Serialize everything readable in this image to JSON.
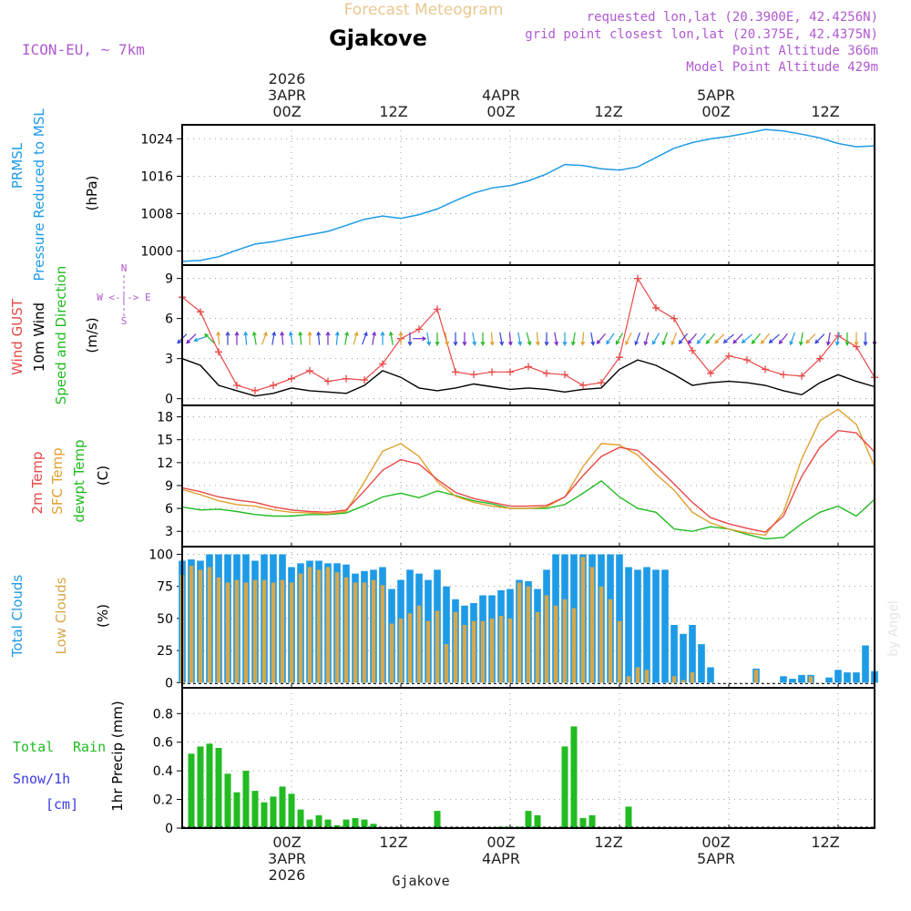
{
  "header": {
    "product_title": "Forecast Meteogram",
    "location": "Gjakove",
    "model": "ICON-EU, ~ 7km",
    "requested": "requested lon,lat (20.3900E, 42.4256N)",
    "grid_point": "grid point closest lon,lat (20.375E, 42.4375N)",
    "point_altitude": "Point Altitude 366m",
    "model_altitude": "Model Point Altitude 429m",
    "footer_location": "Gjakove",
    "watermark": "by Angel"
  },
  "time_axis": {
    "top_year": "2026",
    "ticks": [
      {
        "hour": 12,
        "label": "00Z",
        "date": "3APR",
        "year": "2026"
      },
      {
        "hour": 24,
        "label": "12Z"
      },
      {
        "hour": 36,
        "label": "00Z",
        "date": "4APR"
      },
      {
        "hour": 48,
        "label": "12Z"
      },
      {
        "hour": 60,
        "label": "00Z",
        "date": "5APR"
      },
      {
        "hour": 72,
        "label": "12Z"
      }
    ],
    "hour_range": [
      0,
      76
    ]
  },
  "legend": {
    "p1": {
      "a": "PRMSL",
      "b": "Pressure Reduced to MSL",
      "unit": "(hPa)"
    },
    "p2": {
      "a": "Wind GUST",
      "b": "10m Wind",
      "c": "Speed and Direction",
      "unit": "(m/s)",
      "compass_n": "N",
      "compass_s": "S",
      "compass_we": "W <-|-> E"
    },
    "p3": {
      "a": "2m Temp",
      "b": "SFC Temp",
      "c": "dewpt Temp",
      "unit": "(C)"
    },
    "p4": {
      "a": "Total Clouds",
      "b": "Low Clouds",
      "unit": "(%)"
    },
    "p5": {
      "a": "Total",
      "a2": "Rain",
      "b": "Snow/1h",
      "c": "[cm]",
      "ylabel": "1hr Precip (mm)"
    }
  },
  "colors": {
    "pressure": "#1e9be6",
    "gust": "#e84848",
    "wind10m": "#000000",
    "temp2m": "#e84848",
    "sfc": "#e0a030",
    "dewpt": "#22bb22",
    "total_clouds": "#1e9be6",
    "low_clouds": "#d6a74a",
    "rain": "#22bb22",
    "snow": "#3b3be0",
    "purple": "#b05ad0",
    "title_faint": "#e8c890"
  },
  "chart_data": [
    {
      "type": "line",
      "title": "PRMSL Pressure Reduced to MSL",
      "ylabel": "(hPa)",
      "ylim": [
        997,
        1027
      ],
      "yticks": [
        1000,
        1008,
        1016,
        1024
      ],
      "x": [
        0,
        2,
        4,
        6,
        8,
        10,
        12,
        14,
        16,
        18,
        20,
        22,
        24,
        26,
        28,
        30,
        32,
        34,
        36,
        38,
        40,
        42,
        44,
        46,
        48,
        50,
        52,
        54,
        56,
        58,
        60,
        62,
        64,
        66,
        68,
        70,
        72,
        74,
        76
      ],
      "series": [
        {
          "name": "PRMSL",
          "values": [
            997.8,
            998.0,
            998.8,
            1000.2,
            1001.5,
            1002.0,
            1002.8,
            1003.5,
            1004.2,
            1005.5,
            1006.8,
            1007.5,
            1007.0,
            1007.8,
            1009.0,
            1010.8,
            1012.4,
            1013.5,
            1014.0,
            1015.0,
            1016.5,
            1018.5,
            1018.3,
            1017.6,
            1017.3,
            1018.0,
            1020.0,
            1022.0,
            1023.2,
            1024.0,
            1024.5,
            1025.2,
            1026.0,
            1025.7,
            1025.0,
            1024.2,
            1023.0,
            1022.3,
            1022.5
          ]
        }
      ]
    },
    {
      "type": "line",
      "title": "Wind GUST / 10m Wind Speed and Direction",
      "ylabel": "(m/s)",
      "ylim": [
        -0.5,
        10
      ],
      "yticks": [
        0,
        3,
        6,
        9
      ],
      "x": [
        0,
        2,
        4,
        6,
        8,
        10,
        12,
        14,
        16,
        18,
        20,
        22,
        24,
        26,
        28,
        30,
        32,
        34,
        36,
        38,
        40,
        42,
        44,
        46,
        48,
        50,
        52,
        54,
        56,
        58,
        60,
        62,
        64,
        66,
        68,
        70,
        72,
        74,
        76
      ],
      "series": [
        {
          "name": "Wind GUST",
          "values": [
            7.6,
            6.5,
            3.5,
            1.0,
            0.6,
            1.0,
            1.5,
            2.1,
            1.3,
            1.5,
            1.4,
            2.6,
            4.5,
            5.2,
            6.7,
            2.0,
            1.8,
            2.0,
            2.0,
            2.4,
            1.9,
            1.8,
            1.0,
            1.2,
            3.1,
            9.0,
            6.8,
            6.0,
            3.6,
            1.9,
            3.2,
            2.9,
            2.2,
            1.8,
            1.7,
            3.0,
            4.7,
            3.9,
            1.6
          ]
        },
        {
          "name": "10m Wind",
          "values": [
            3.0,
            2.5,
            1.0,
            0.6,
            0.2,
            0.4,
            0.8,
            0.6,
            0.5,
            0.4,
            1.0,
            2.1,
            1.6,
            0.8,
            0.6,
            0.8,
            1.1,
            0.9,
            0.7,
            0.8,
            0.7,
            0.5,
            0.7,
            0.8,
            2.2,
            2.9,
            2.5,
            1.8,
            1.0,
            1.2,
            1.3,
            1.2,
            1.0,
            0.6,
            0.3,
            1.2,
            1.8,
            1.3,
            0.9
          ]
        }
      ],
      "wind_direction_arrows": {
        "note": "arrows along each hour; colour indicates speed",
        "x": [
          0,
          1,
          2,
          3,
          4,
          5,
          6,
          7,
          8,
          9,
          10,
          11,
          12,
          13,
          14,
          15,
          16,
          17,
          18,
          19,
          20,
          21,
          22,
          23,
          24,
          25,
          26,
          27,
          28,
          29,
          30,
          31,
          32,
          33,
          34,
          35,
          36,
          37,
          38,
          39,
          40,
          41,
          42,
          43,
          44,
          45,
          46,
          47,
          48,
          49,
          50,
          51,
          52,
          53,
          54,
          55,
          56,
          57,
          58,
          59,
          60,
          61,
          62,
          63,
          64,
          65,
          66,
          67,
          68,
          69,
          70,
          71,
          72,
          73,
          74,
          75,
          76
        ],
        "dir_deg": [
          225,
          225,
          200,
          135,
          95,
          90,
          90,
          95,
          100,
          70,
          80,
          95,
          100,
          95,
          90,
          95,
          90,
          85,
          80,
          75,
          70,
          80,
          90,
          100,
          90,
          270,
          0,
          280,
          270,
          280,
          270,
          270,
          280,
          270,
          275,
          280,
          275,
          280,
          285,
          275,
          270,
          280,
          270,
          260,
          265,
          280,
          230,
          235,
          240,
          245,
          250,
          255,
          240,
          250,
          250,
          230,
          230,
          230,
          230,
          225,
          220,
          225,
          220,
          230,
          230,
          220,
          230,
          250,
          260,
          225,
          225,
          260,
          260,
          270,
          270,
          270,
          270
        ]
      }
    },
    {
      "type": "line",
      "title": "2m Temp / SFC Temp / dewpt Temp",
      "ylabel": "(C)",
      "ylim": [
        1,
        19.5
      ],
      "yticks": [
        3,
        6,
        9,
        12,
        15,
        18
      ],
      "x": [
        0,
        2,
        4,
        6,
        8,
        10,
        12,
        14,
        16,
        18,
        20,
        22,
        24,
        26,
        28,
        30,
        32,
        34,
        36,
        38,
        40,
        42,
        44,
        46,
        48,
        50,
        52,
        54,
        56,
        58,
        60,
        62,
        64,
        66,
        68,
        70,
        72,
        74,
        76
      ],
      "series": [
        {
          "name": "2m Temp",
          "values": [
            8.7,
            8.2,
            7.5,
            7.1,
            6.8,
            6.2,
            5.8,
            5.6,
            5.5,
            5.8,
            8.3,
            11.0,
            12.4,
            11.8,
            9.8,
            8.1,
            7.3,
            6.8,
            6.3,
            6.3,
            6.4,
            7.5,
            10.3,
            12.8,
            14.0,
            13.6,
            11.5,
            9.2,
            6.8,
            4.8,
            4.0,
            3.4,
            2.9,
            5.0,
            10.2,
            14.0,
            16.2,
            15.9,
            13.4
          ]
        },
        {
          "name": "SFC Temp",
          "values": [
            8.5,
            7.8,
            7.0,
            6.5,
            6.3,
            5.8,
            5.5,
            5.4,
            5.3,
            5.6,
            9.5,
            13.5,
            14.5,
            12.8,
            9.5,
            7.6,
            6.8,
            6.3,
            6.0,
            6.0,
            6.2,
            7.5,
            11.5,
            14.5,
            14.3,
            13.0,
            10.5,
            8.4,
            5.5,
            4.1,
            3.3,
            2.8,
            2.5,
            5.5,
            12.5,
            17.5,
            19.0,
            17.0,
            11.5
          ]
        },
        {
          "name": "dewpt Temp",
          "values": [
            6.2,
            5.8,
            5.9,
            5.6,
            5.2,
            5.0,
            5.0,
            5.2,
            5.2,
            5.4,
            6.4,
            7.5,
            8.0,
            7.4,
            8.3,
            7.7,
            7.0,
            6.6,
            6.0,
            6.0,
            6.0,
            6.5,
            8.0,
            9.6,
            7.5,
            6.0,
            5.5,
            3.3,
            3.0,
            3.6,
            3.3,
            2.6,
            2.0,
            2.2,
            4.0,
            5.5,
            6.3,
            5.0,
            7.2
          ]
        }
      ]
    },
    {
      "type": "bar",
      "title": "Total Clouds / Low Clouds",
      "ylabel": "(%)",
      "ylim": [
        -4,
        106
      ],
      "yticks": [
        0,
        25,
        50,
        75,
        100
      ],
      "x": [
        0,
        1,
        2,
        3,
        4,
        5,
        6,
        7,
        8,
        9,
        10,
        11,
        12,
        13,
        14,
        15,
        16,
        17,
        18,
        19,
        20,
        21,
        22,
        23,
        24,
        25,
        26,
        27,
        28,
        29,
        30,
        31,
        32,
        33,
        34,
        35,
        36,
        37,
        38,
        39,
        40,
        41,
        42,
        43,
        44,
        45,
        46,
        47,
        48,
        49,
        50,
        51,
        52,
        53,
        54,
        55,
        56,
        57,
        58,
        59,
        60,
        61,
        62,
        63,
        64,
        65,
        66,
        67,
        68,
        69,
        70,
        71,
        72,
        73,
        74,
        75,
        76
      ],
      "series": [
        {
          "name": "Total Clouds",
          "values": [
            95,
            96,
            95,
            100,
            100,
            100,
            100,
            100,
            95,
            100,
            100,
            100,
            90,
            93,
            95,
            95,
            93,
            93,
            92,
            85,
            87,
            88,
            90,
            73,
            80,
            88,
            85,
            80,
            88,
            75,
            65,
            60,
            62,
            68,
            68,
            72,
            73,
            80,
            79,
            73,
            88,
            100,
            100,
            100,
            100,
            100,
            100,
            100,
            100,
            90,
            88,
            90,
            88,
            88,
            45,
            38,
            45,
            30,
            12,
            0,
            0,
            0,
            0,
            11,
            0,
            0,
            0,
            2,
            4,
            6,
            0,
            0,
            0,
            0,
            0,
            0,
            0
          ]
        },
        {
          "name": "Low Clouds",
          "values": [
            84,
            91,
            88,
            90,
            82,
            78,
            80,
            78,
            80,
            80,
            78,
            80,
            78,
            85,
            90,
            88,
            90,
            86,
            82,
            78,
            78,
            80,
            76,
            46,
            50,
            54,
            60,
            48,
            56,
            30,
            55,
            45,
            48,
            48,
            50,
            52,
            50,
            78,
            75,
            55,
            68,
            60,
            65,
            58,
            98,
            90,
            75,
            65,
            48,
            5,
            12,
            10,
            0,
            0,
            5,
            2,
            8,
            0,
            0,
            0,
            0,
            0,
            0,
            10,
            0,
            0,
            0,
            1,
            3,
            5,
            0,
            0,
            0,
            0,
            0,
            0,
            0
          ]
        }
      ],
      "extra_total_tail": {
        "hours": [
          66,
          67,
          68,
          71,
          72,
          73,
          74,
          75,
          76
        ],
        "values": [
          5,
          3,
          6,
          4,
          10,
          8,
          8,
          29,
          9
        ]
      }
    },
    {
      "type": "bar",
      "title": "1hr Precip (mm)",
      "ylabel": "1hr Precip (mm)",
      "ylim": [
        0,
        0.98
      ],
      "yticks": [
        0,
        0.2,
        0.4,
        0.6,
        0.8
      ],
      "x": [
        1,
        2,
        3,
        4,
        5,
        6,
        7,
        8,
        9,
        10,
        11,
        12,
        13,
        14,
        15,
        16,
        17,
        18,
        19,
        20,
        21,
        22,
        23,
        24,
        25,
        26,
        27,
        28,
        29,
        30,
        31,
        32,
        33,
        34,
        35,
        36,
        37,
        38,
        39,
        40,
        41,
        42,
        43,
        44,
        45,
        46,
        47,
        48,
        49
      ],
      "series": [
        {
          "name": "Total Rain",
          "values": [
            0.52,
            0.57,
            0.59,
            0.56,
            0.38,
            0.25,
            0.4,
            0.26,
            0.18,
            0.22,
            0.29,
            0.24,
            0.13,
            0.06,
            0.09,
            0.06,
            0.02,
            0.06,
            0.07,
            0.06,
            0.03,
            0,
            0,
            0,
            0,
            0,
            0,
            0.12,
            0,
            0,
            0,
            0,
            0,
            0,
            0.01,
            0.01,
            0.01,
            0.12,
            0.09,
            0,
            0,
            0.57,
            0.71,
            0.07,
            0.09,
            0,
            0,
            0,
            0.15
          ]
        }
      ]
    }
  ]
}
